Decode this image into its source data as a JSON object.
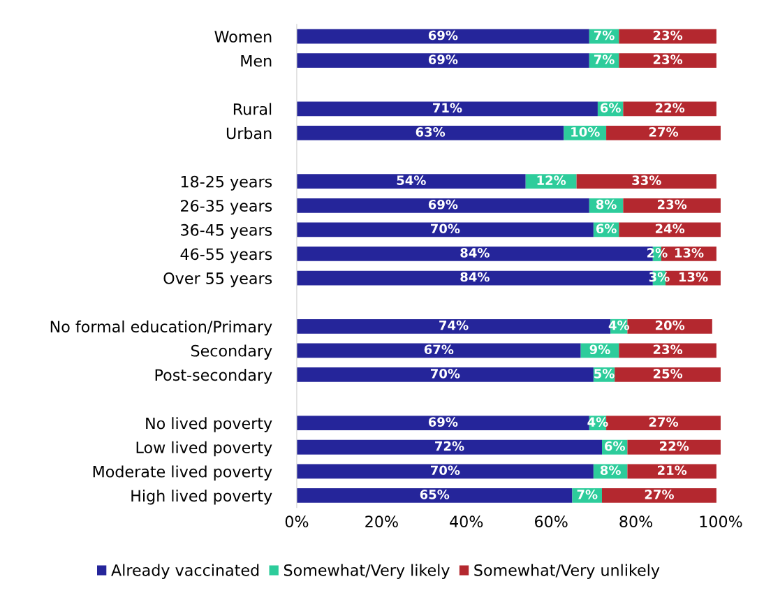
{
  "chart_data": {
    "type": "bar",
    "orientation": "horizontal",
    "stacked": true,
    "categories": [
      "Women",
      "Men",
      null,
      "Rural",
      "Urban",
      null,
      "18-25 years",
      "26-35 years",
      "36-45 years",
      "46-55 years",
      "Over 55 years",
      null,
      "No formal education/Primary",
      "Secondary",
      "Post-secondary",
      null,
      "No lived poverty",
      "Low lived poverty",
      "Moderate lived poverty",
      "High lived poverty"
    ],
    "series": [
      {
        "name": "Already vaccinated",
        "color": "#25259a",
        "values": [
          69,
          69,
          null,
          71,
          63,
          null,
          54,
          69,
          70,
          84,
          84,
          null,
          74,
          67,
          70,
          null,
          69,
          72,
          70,
          65
        ],
        "value_labels": [
          "69%",
          "69%",
          null,
          "71%",
          "63%",
          null,
          "54%",
          "69%",
          "70%",
          "84%",
          "84%",
          null,
          "74%",
          "67%",
          "70%",
          null,
          "69%",
          "72%",
          "70%",
          "65%"
        ]
      },
      {
        "name": "Somewhat/Very likely",
        "color": "#2dcc9b",
        "values": [
          7,
          7,
          null,
          6,
          10,
          null,
          12,
          8,
          6,
          2,
          3,
          null,
          4,
          9,
          5,
          null,
          4,
          6,
          8,
          7
        ],
        "value_labels": [
          "7%",
          "7%",
          null,
          "6%",
          "10%",
          null,
          "12%",
          "8%",
          "6%",
          "2%",
          "3%",
          null,
          "4%",
          "9%",
          "5%",
          null,
          "4%",
          "6%",
          "8%",
          "7%"
        ]
      },
      {
        "name": "Somewhat/Very unlikely",
        "color": "#b4282f",
        "values": [
          23,
          23,
          null,
          22,
          27,
          null,
          33,
          23,
          24,
          13,
          13,
          null,
          20,
          23,
          25,
          null,
          27,
          22,
          21,
          27
        ],
        "value_labels": [
          "23%",
          "23%",
          null,
          "22%",
          "27%",
          null,
          "33%",
          "23%",
          "24%",
          "13%",
          "13%",
          null,
          "20%",
          "23%",
          "25%",
          null,
          "27%",
          "22%",
          "21%",
          "27%"
        ]
      }
    ],
    "xlim": [
      0,
      100
    ],
    "xticks": [
      {
        "value": 0,
        "label": "0%"
      },
      {
        "value": 20,
        "label": "20%"
      },
      {
        "value": 40,
        "label": "40%"
      },
      {
        "value": 60,
        "label": "60%"
      },
      {
        "value": 80,
        "label": "80%"
      },
      {
        "value": 100,
        "label": "100%"
      }
    ],
    "grid": false,
    "legend": "bottom"
  }
}
